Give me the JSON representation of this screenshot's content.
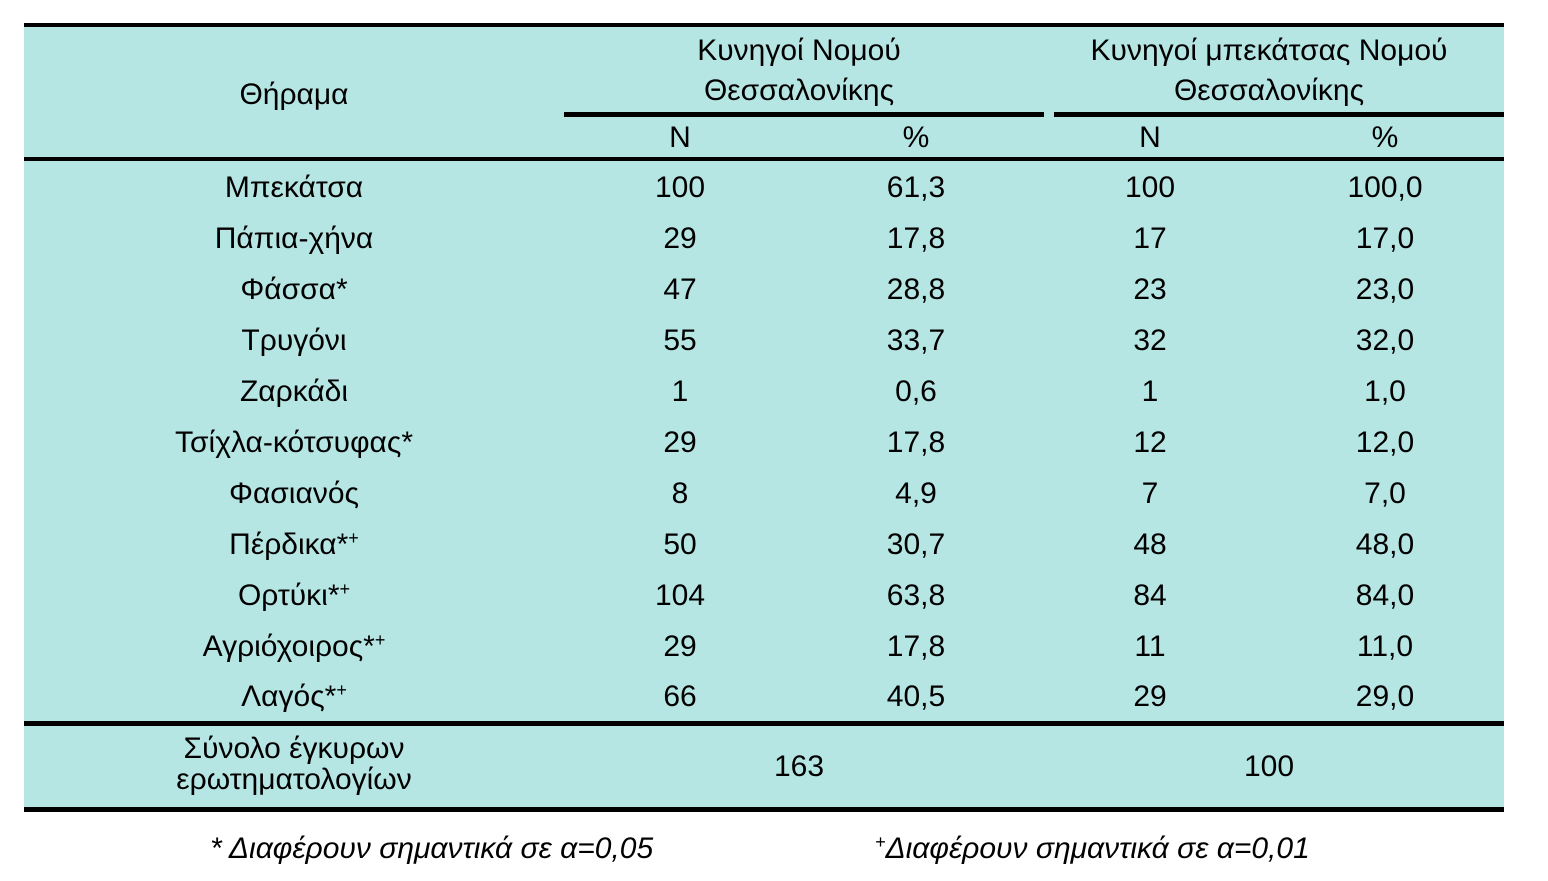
{
  "header": {
    "col_game": "Θήραμα",
    "group1": [
      "Κυνηγοί Νομού",
      "Θεσσαλονίκης"
    ],
    "group2": [
      "Κυνηγοί μπεκάτσας Νομού",
      "Θεσσαλονίκης"
    ],
    "n_label": "N",
    "pct_label": "%"
  },
  "rows": [
    {
      "game": "Μπεκάτσα",
      "mark": "",
      "n1": "100",
      "p1": "61,3",
      "n2": "100",
      "p2": "100,0"
    },
    {
      "game": "Πάπια-χήνα",
      "mark": "",
      "n1": "29",
      "p1": "17,8",
      "n2": "17",
      "p2": "17,0"
    },
    {
      "game": "Φάσσα*",
      "mark": "",
      "n1": "47",
      "p1": "28,8",
      "n2": "23",
      "p2": "23,0"
    },
    {
      "game": "Τρυγόνι",
      "mark": "",
      "n1": "55",
      "p1": "33,7",
      "n2": "32",
      "p2": "32,0"
    },
    {
      "game": "Ζαρκάδι",
      "mark": "",
      "n1": "1",
      "p1": "0,6",
      "n2": "1",
      "p2": "1,0"
    },
    {
      "game": "Τσίχλα-κότσυφας*",
      "mark": "",
      "n1": "29",
      "p1": "17,8",
      "n2": "12",
      "p2": "12,0"
    },
    {
      "game": "Φασιανός",
      "mark": "",
      "n1": "8",
      "p1": "4,9",
      "n2": "7",
      "p2": "7,0"
    },
    {
      "game": "Πέρδικα*",
      "mark": "+",
      "n1": "50",
      "p1": "30,7",
      "n2": "48",
      "p2": "48,0"
    },
    {
      "game": "Ορτύκι*",
      "mark": "+",
      "n1": "104",
      "p1": "63,8",
      "n2": "84",
      "p2": "84,0"
    },
    {
      "game": "Αγριόχοιρος*",
      "mark": "+",
      "n1": "29",
      "p1": "17,8",
      "n2": "11",
      "p2": "11,0"
    },
    {
      "game": "Λαγός*",
      "mark": "+",
      "n1": "66",
      "p1": "40,5",
      "n2": "29",
      "p2": "29,0"
    }
  ],
  "total": {
    "label": [
      "Σύνολο έγκυρων",
      "ερωτηματολογίων"
    ],
    "v1": "163",
    "v2": "100"
  },
  "footnotes": {
    "f1": "* Διαφέρουν σημαντικά σε α=0,05",
    "f2_mark": "+",
    "f2": "Διαφέρουν σημαντικά σε α=0,01"
  },
  "colors": {
    "fill": "#b6e6e4",
    "rule": "#000000"
  }
}
